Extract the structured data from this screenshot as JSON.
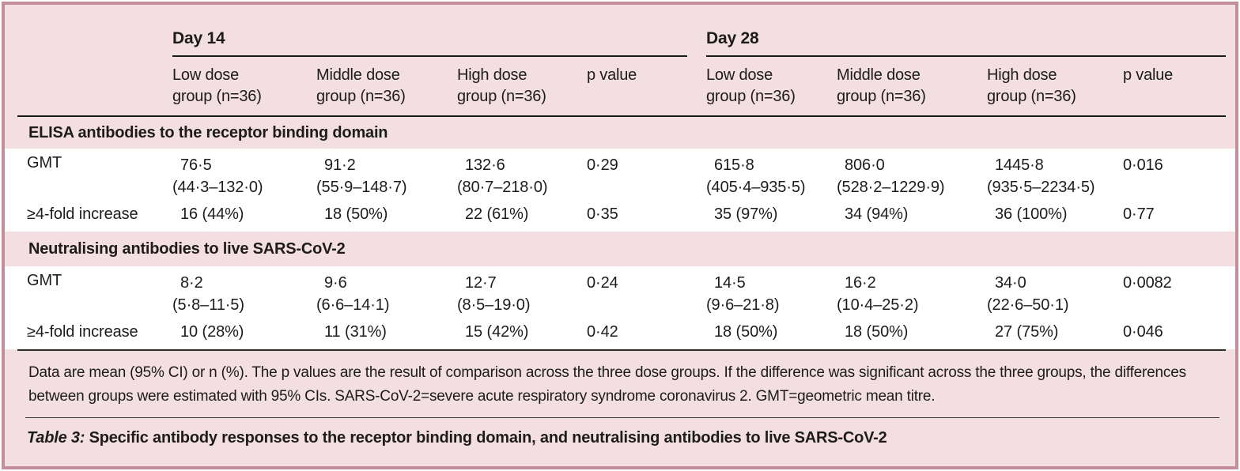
{
  "header": {
    "day14": "Day 14",
    "day28": "Day 28",
    "columns": [
      {
        "l1": "Low dose",
        "l2": "group (n=36)"
      },
      {
        "l1": "Middle dose",
        "l2": "group (n=36)"
      },
      {
        "l1": "High dose",
        "l2": "group (n=36)"
      },
      {
        "l1": "p value",
        "l2": ""
      }
    ]
  },
  "sections": [
    {
      "title": "ELISA antibodies to the receptor binding domain",
      "rows": [
        {
          "label": "GMT",
          "cells": [
            {
              "v": "76·5",
              "ci": "(44·3–132·0)"
            },
            {
              "v": "91·2",
              "ci": "(55·9–148·7)"
            },
            {
              "v": "132·6",
              "ci": "(80·7–218·0)"
            },
            {
              "v": "0·29"
            },
            {
              "v": "615·8",
              "ci": "(405·4–935·5)"
            },
            {
              "v": "806·0",
              "ci": "(528·2–1229·9)"
            },
            {
              "v": "1445·8",
              "ci": "(935·5–2234·5)"
            },
            {
              "v": "0·016"
            }
          ]
        },
        {
          "label": "≥4-fold increase",
          "cells": [
            {
              "v": "16 (44%)"
            },
            {
              "v": "18 (50%)"
            },
            {
              "v": "22 (61%)"
            },
            {
              "v": "0·35"
            },
            {
              "v": "35 (97%)"
            },
            {
              "v": "34 (94%)"
            },
            {
              "v": "36 (100%)"
            },
            {
              "v": "0·77"
            }
          ]
        }
      ]
    },
    {
      "title": "Neutralising antibodies to live SARS-CoV-2",
      "rows": [
        {
          "label": "GMT",
          "cells": [
            {
              "v": "8·2",
              "ci": "(5·8–11·5)"
            },
            {
              "v": "9·6",
              "ci": "(6·6–14·1)"
            },
            {
              "v": "12·7",
              "ci": "(8·5–19·0)"
            },
            {
              "v": "0·24"
            },
            {
              "v": "14·5",
              "ci": "(9·6–21·8)"
            },
            {
              "v": "16·2",
              "ci": "(10·4–25·2)"
            },
            {
              "v": "34·0",
              "ci": "(22·6–50·1)"
            },
            {
              "v": "0·0082"
            }
          ]
        },
        {
          "label": "≥4-fold increase",
          "cells": [
            {
              "v": "10 (28%)"
            },
            {
              "v": "11 (31%)"
            },
            {
              "v": "15 (42%)"
            },
            {
              "v": "0·42"
            },
            {
              "v": "18 (50%)"
            },
            {
              "v": "18 (50%)"
            },
            {
              "v": "27 (75%)"
            },
            {
              "v": "0·046"
            }
          ]
        }
      ]
    }
  ],
  "footnote": "Data are mean (95% CI) or n (%). The p values are the result of comparison across the three dose groups. If the difference was significant across the three groups, the differences between groups were estimated with 95% CIs. SARS-CoV-2=severe acute respiratory syndrome coronavirus 2. GMT=geometric mean titre.",
  "caption": {
    "prefix": "Table 3:",
    "text": "Specific antibody responses to the receptor binding domain, and neutralising antibodies to live SARS-CoV-2"
  },
  "colors": {
    "background": "#f3dfe1",
    "border": "#c38e9c",
    "row_background": "#ffffff",
    "text": "#1d1c1a"
  },
  "chart_data": {
    "type": "table",
    "title": "Table 3: Specific antibody responses to the receptor binding domain, and neutralising antibodies to live SARS-CoV-2",
    "column_groups": [
      "Day 14",
      "Day 28"
    ],
    "columns": [
      "Low dose group (n=36)",
      "Middle dose group (n=36)",
      "High dose group (n=36)",
      "p value",
      "Low dose group (n=36)",
      "Middle dose group (n=36)",
      "High dose group (n=36)",
      "p value"
    ],
    "rows": [
      {
        "section": "ELISA antibodies to the receptor binding domain",
        "label": "GMT",
        "values": [
          "76·5 (44·3–132·0)",
          "91·2 (55·9–148·7)",
          "132·6 (80·7–218·0)",
          "0·29",
          "615·8 (405·4–935·5)",
          "806·0 (528·2–1229·9)",
          "1445·8 (935·5–2234·5)",
          "0·016"
        ]
      },
      {
        "section": "ELISA antibodies to the receptor binding domain",
        "label": "≥4-fold increase",
        "values": [
          "16 (44%)",
          "18 (50%)",
          "22 (61%)",
          "0·35",
          "35 (97%)",
          "34 (94%)",
          "36 (100%)",
          "0·77"
        ]
      },
      {
        "section": "Neutralising antibodies to live SARS-CoV-2",
        "label": "GMT",
        "values": [
          "8·2 (5·8–11·5)",
          "9·6 (6·6–14·1)",
          "12·7 (8·5–19·0)",
          "0·24",
          "14·5 (9·6–21·8)",
          "16·2 (10·4–25·2)",
          "34·0 (22·6–50·1)",
          "0·0082"
        ]
      },
      {
        "section": "Neutralising antibodies to live SARS-CoV-2",
        "label": "≥4-fold increase",
        "values": [
          "10 (28%)",
          "11 (31%)",
          "15 (42%)",
          "0·42",
          "18 (50%)",
          "18 (50%)",
          "27 (75%)",
          "0·046"
        ]
      }
    ]
  }
}
